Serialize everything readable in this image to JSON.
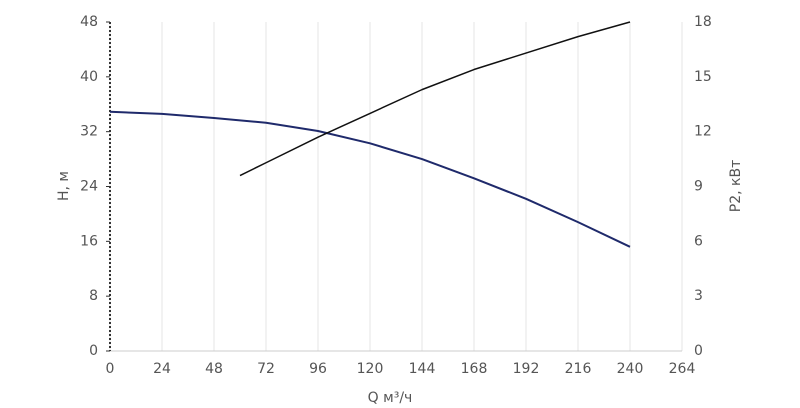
{
  "chart_data": {
    "type": "line",
    "x_label": "Q м³/ч",
    "y_label": "H, м",
    "y2_label": "P2, кВт",
    "xlim": [
      0,
      264
    ],
    "xticks": [
      0,
      24,
      48,
      72,
      96,
      120,
      144,
      168,
      192,
      216,
      240,
      264
    ],
    "ylim": [
      0,
      48
    ],
    "yticks": [
      0,
      8,
      16,
      24,
      32,
      40,
      48
    ],
    "y2lim": [
      0,
      18
    ],
    "y2ticks": [
      0,
      3,
      6,
      9,
      12,
      15,
      18
    ],
    "grid": true,
    "series": [
      {
        "name": "H",
        "color": "#1f2a6b",
        "x": [
          0,
          24,
          48,
          72,
          96,
          120,
          144,
          168,
          192,
          216,
          240
        ],
        "values": [
          34.9,
          34.6,
          34.0,
          33.3,
          32.1,
          30.3,
          28.0,
          25.2,
          22.2,
          18.8,
          15.2
        ]
      },
      {
        "name": "P2",
        "color": "#111111",
        "axis": "y2",
        "x": [
          60,
          72,
          96,
          120,
          144,
          168,
          192,
          216,
          240
        ],
        "values": [
          9.6,
          10.3,
          11.7,
          13.0,
          14.3,
          15.4,
          16.3,
          17.2,
          18.0
        ]
      }
    ]
  }
}
